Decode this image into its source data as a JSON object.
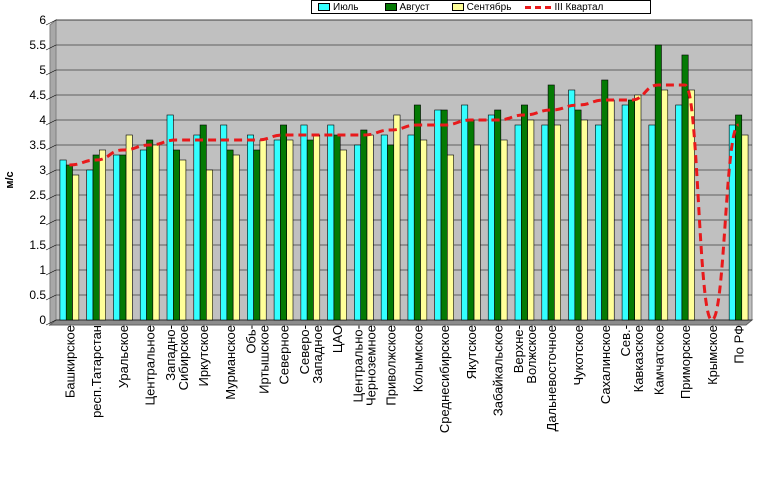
{
  "chart_data": {
    "type": "bar",
    "xlabel": "",
    "ylabel": "м/с",
    "ylim": [
      0,
      6
    ],
    "yticks": [
      "0",
      "0.5",
      "1",
      "1.5",
      "2",
      "2.5",
      "3",
      "3.5",
      "4",
      "4.5",
      "5",
      "5.5",
      "6"
    ],
    "grid": true,
    "legend_position": "top",
    "categories": [
      "Башкирское",
      "респ.Татарстан",
      "Уральское",
      "Центральное",
      "Западно-Сибирское",
      "Иркутское",
      "Мурманское",
      "Обь-Иртышское",
      "Северное",
      "Северо-Западное",
      "ЦАО",
      "Центрально-Черноземное",
      "Приволжское",
      "Колымское",
      "Среднесибирское",
      "Якутское",
      "Забайкальское",
      "Верхне-Волжское",
      "Дальневосточное",
      "Чукотское",
      "Сахалинское",
      "Сев.-Кавказское",
      "Камчатское",
      "Приморское",
      "Крымское",
      "По РФ"
    ],
    "category_lines": [
      [
        "Башкирское"
      ],
      [
        "респ.Татарстан"
      ],
      [
        "Уральское"
      ],
      [
        "Центральное"
      ],
      [
        "Западно-",
        "Сибирское"
      ],
      [
        "Иркутское"
      ],
      [
        "Мурманское"
      ],
      [
        "Обь-",
        "Иртышское"
      ],
      [
        "Северное"
      ],
      [
        "Северо-",
        "Западное"
      ],
      [
        "ЦАО"
      ],
      [
        "Центрально-",
        "Черноземное"
      ],
      [
        "Приволжское"
      ],
      [
        "Колымское"
      ],
      [
        "Среднесибирское"
      ],
      [
        "Якутское"
      ],
      [
        "Забайкальское"
      ],
      [
        "Верхне-",
        "Волжское"
      ],
      [
        "Дальневосточное"
      ],
      [
        "Чукотское"
      ],
      [
        "Сахалинское"
      ],
      [
        "Сев.-",
        "Кавказское"
      ],
      [
        "Камчатское"
      ],
      [
        "Приморское"
      ],
      [
        "Крымское"
      ],
      [
        "По РФ"
      ]
    ],
    "series": [
      {
        "name": "Июль",
        "type": "bar",
        "color": "#33ffff",
        "values": [
          3.2,
          3.0,
          3.3,
          3.4,
          4.1,
          3.7,
          3.9,
          3.7,
          3.6,
          3.9,
          3.9,
          3.5,
          3.7,
          3.7,
          4.2,
          4.3,
          4.1,
          3.9,
          3.9,
          4.6,
          3.9,
          4.3,
          3.9,
          4.3,
          0,
          3.9
        ]
      },
      {
        "name": "Август",
        "type": "bar",
        "color": "#047a04",
        "values": [
          3.1,
          3.3,
          3.3,
          3.6,
          3.4,
          3.9,
          3.4,
          3.4,
          3.9,
          3.6,
          3.7,
          3.8,
          3.5,
          4.3,
          4.2,
          4.0,
          4.2,
          4.3,
          4.7,
          4.2,
          4.8,
          4.4,
          5.5,
          5.3,
          0,
          4.1
        ]
      },
      {
        "name": "Сентябрь",
        "type": "bar",
        "color": "#ffff99",
        "values": [
          2.9,
          3.4,
          3.7,
          3.5,
          3.2,
          3.0,
          3.3,
          3.6,
          3.6,
          3.7,
          3.4,
          3.7,
          4.1,
          3.6,
          3.3,
          3.5,
          3.6,
          4.0,
          3.9,
          4.0,
          4.4,
          4.5,
          4.6,
          4.6,
          0,
          3.7
        ]
      },
      {
        "name": "III Квартал",
        "type": "line",
        "color": "#e8191b",
        "values": [
          3.1,
          3.2,
          3.4,
          3.5,
          3.6,
          3.6,
          3.6,
          3.6,
          3.7,
          3.7,
          3.7,
          3.7,
          3.8,
          3.9,
          3.9,
          4.0,
          4.0,
          4.1,
          4.2,
          4.3,
          4.4,
          4.4,
          4.7,
          4.7,
          0,
          3.9
        ]
      }
    ]
  },
  "colors": {
    "plot_background": "#c0c0c0",
    "grid": "#000000",
    "line": "#e8191b"
  }
}
